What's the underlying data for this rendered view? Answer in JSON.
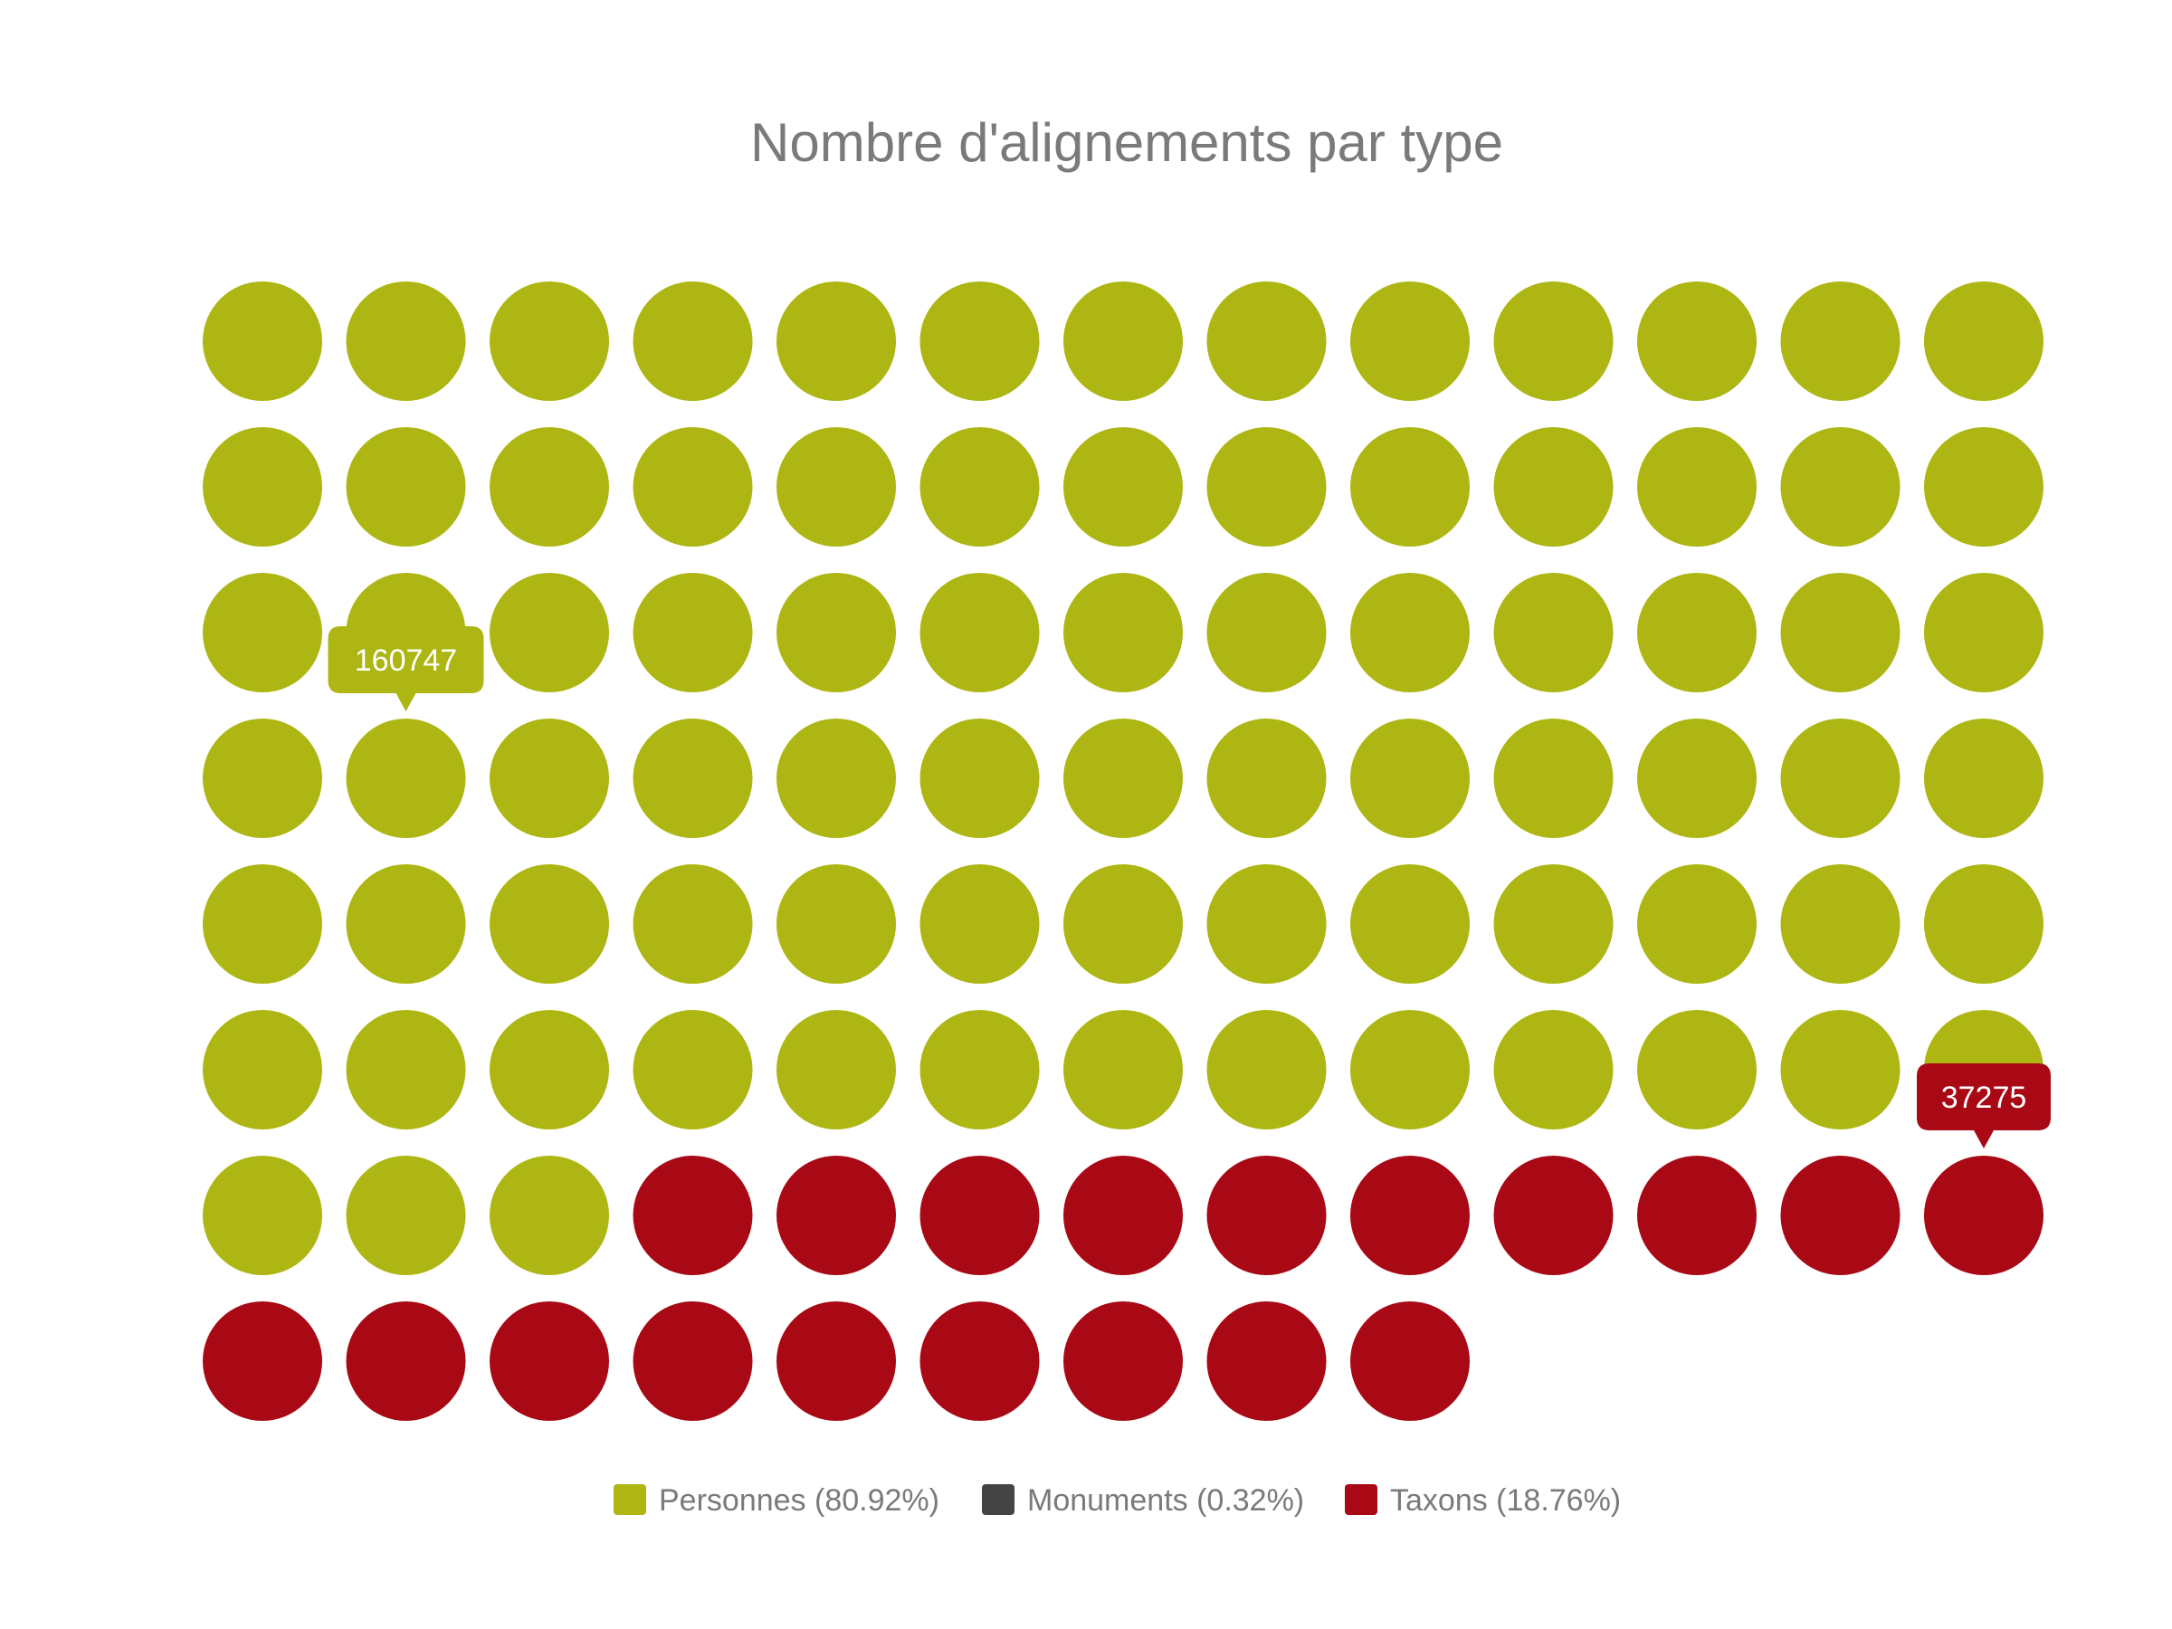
{
  "chart_data": {
    "type": "waffle",
    "title": "Nombre d'alignements par type",
    "grid": {
      "columns": 13,
      "rows": 8
    },
    "series": [
      {
        "name": "Personnes",
        "legend": "Personnes (80.92%)",
        "percent": 80.92,
        "dots": 81,
        "color": "#adb612",
        "data_label": "160747"
      },
      {
        "name": "Monuments",
        "legend": "Monuments (0.32%)",
        "percent": 0.32,
        "dots": 0,
        "color": "#444444"
      },
      {
        "name": "Taxons",
        "legend": "Taxons (18.76%)",
        "percent": 18.76,
        "dots": 19,
        "color": "#a80914",
        "data_label": "37275"
      }
    ],
    "legend_position": "bottom-center"
  }
}
